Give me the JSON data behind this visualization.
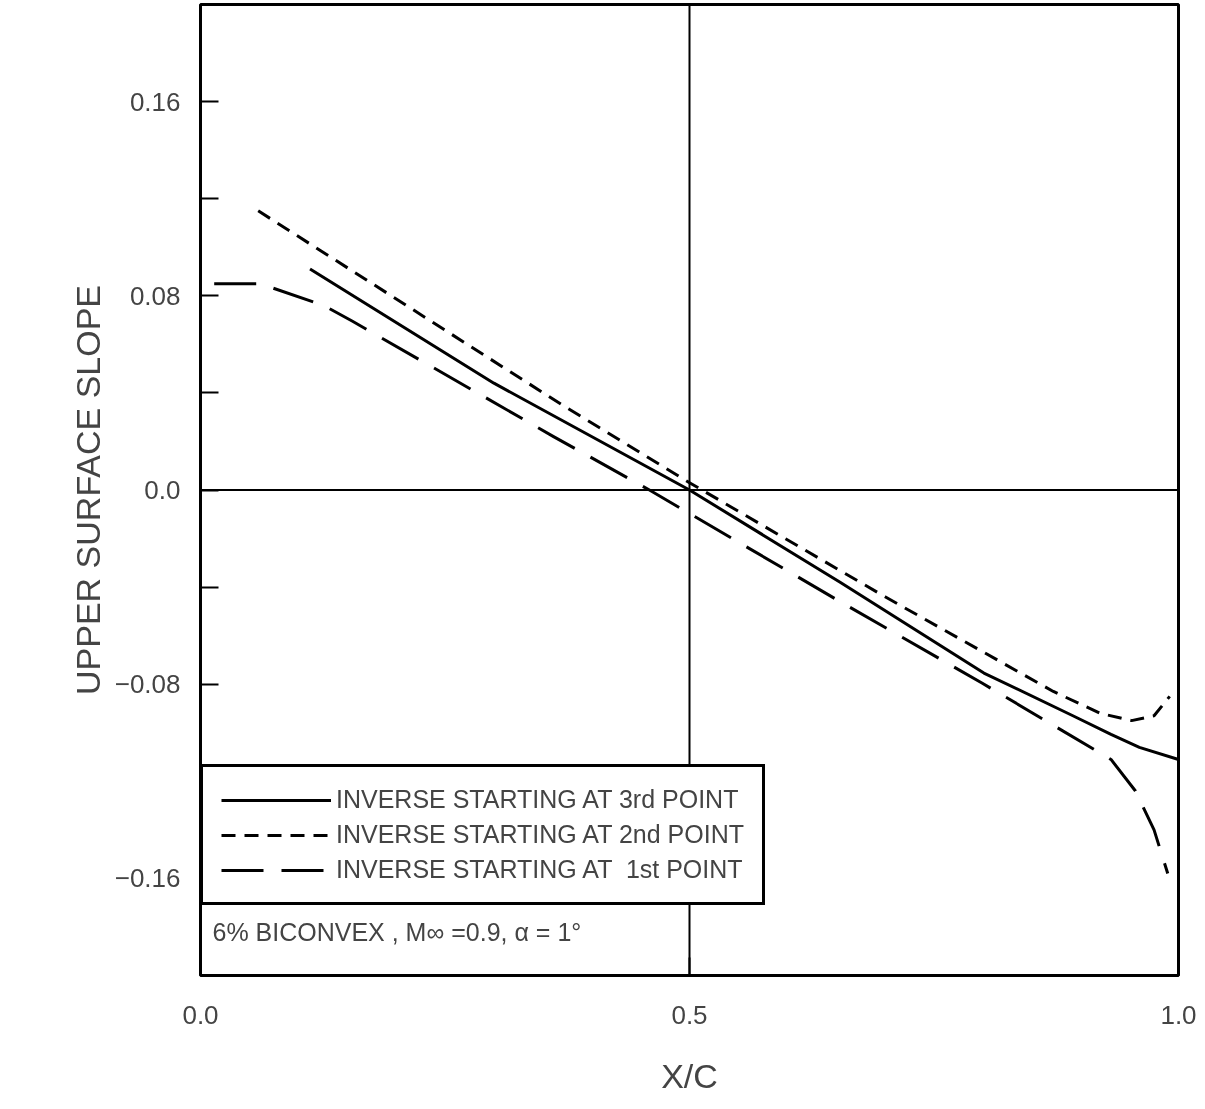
{
  "chart_data": {
    "type": "line",
    "xlabel": "X/C",
    "ylabel": "UPPER SURFACE SLOPE",
    "xlim": [
      0,
      1
    ],
    "ylim": [
      -0.2,
      0.2
    ],
    "xticks": [
      {
        "value": 0,
        "label": "0.0"
      },
      0.5,
      {
        "value": 1,
        "label": "1.0"
      }
    ],
    "yticks": [
      -0.16,
      -0.08,
      {
        "value": 0,
        "label": "0.0"
      },
      0.08,
      0.16
    ],
    "grid": false,
    "legend": "bottom left",
    "marker": "none",
    "ref_lines": [
      {
        "axis": "x",
        "value": 0.5,
        "color": "#000000"
      },
      {
        "axis": "y",
        "value": 0,
        "color": "#000000"
      }
    ],
    "annotations": [
      "6% BICONVEX , M∞ =0.9,  α = 1°"
    ],
    "series": [
      {
        "name": "INVERSE STARTING AT 3rd POINT",
        "color": "#000000",
        "line_style": "solid",
        "x": [
          0.112,
          0.3,
          0.5,
          0.654,
          0.801,
          0.892,
          0.931,
          0.96,
          1.0
        ],
        "values": [
          0.091,
          0.044,
          0.0,
          -0.038,
          -0.0754,
          -0.093,
          -0.1007,
          -0.106,
          -0.111
        ]
      },
      {
        "name": "INVERSE STARTING AT 2nd POINT",
        "color": "#000000",
        "line_style": "dashed",
        "x": [
          0.059,
          0.37,
          0.5,
          0.7,
          0.872,
          0.92,
          0.952,
          0.975,
          0.991
        ],
        "values": [
          0.115,
          0.035,
          0.003,
          -0.044,
          -0.083,
          -0.092,
          -0.095,
          -0.093,
          -0.085
        ]
      },
      {
        "name": "INVERSE STARTING AT  1st POINT",
        "color": "#000000",
        "line_style": "longdash",
        "x": [
          0.014,
          0.061,
          0.126,
          0.155,
          0.361,
          0.459,
          0.654,
          0.799,
          0.931,
          0.956,
          0.975,
          0.989
        ],
        "values": [
          0.085,
          0.085,
          0.076,
          0.0696,
          0.022,
          0.0,
          -0.046,
          -0.0795,
          -0.111,
          -0.124,
          -0.14,
          -0.158
        ]
      }
    ]
  }
}
